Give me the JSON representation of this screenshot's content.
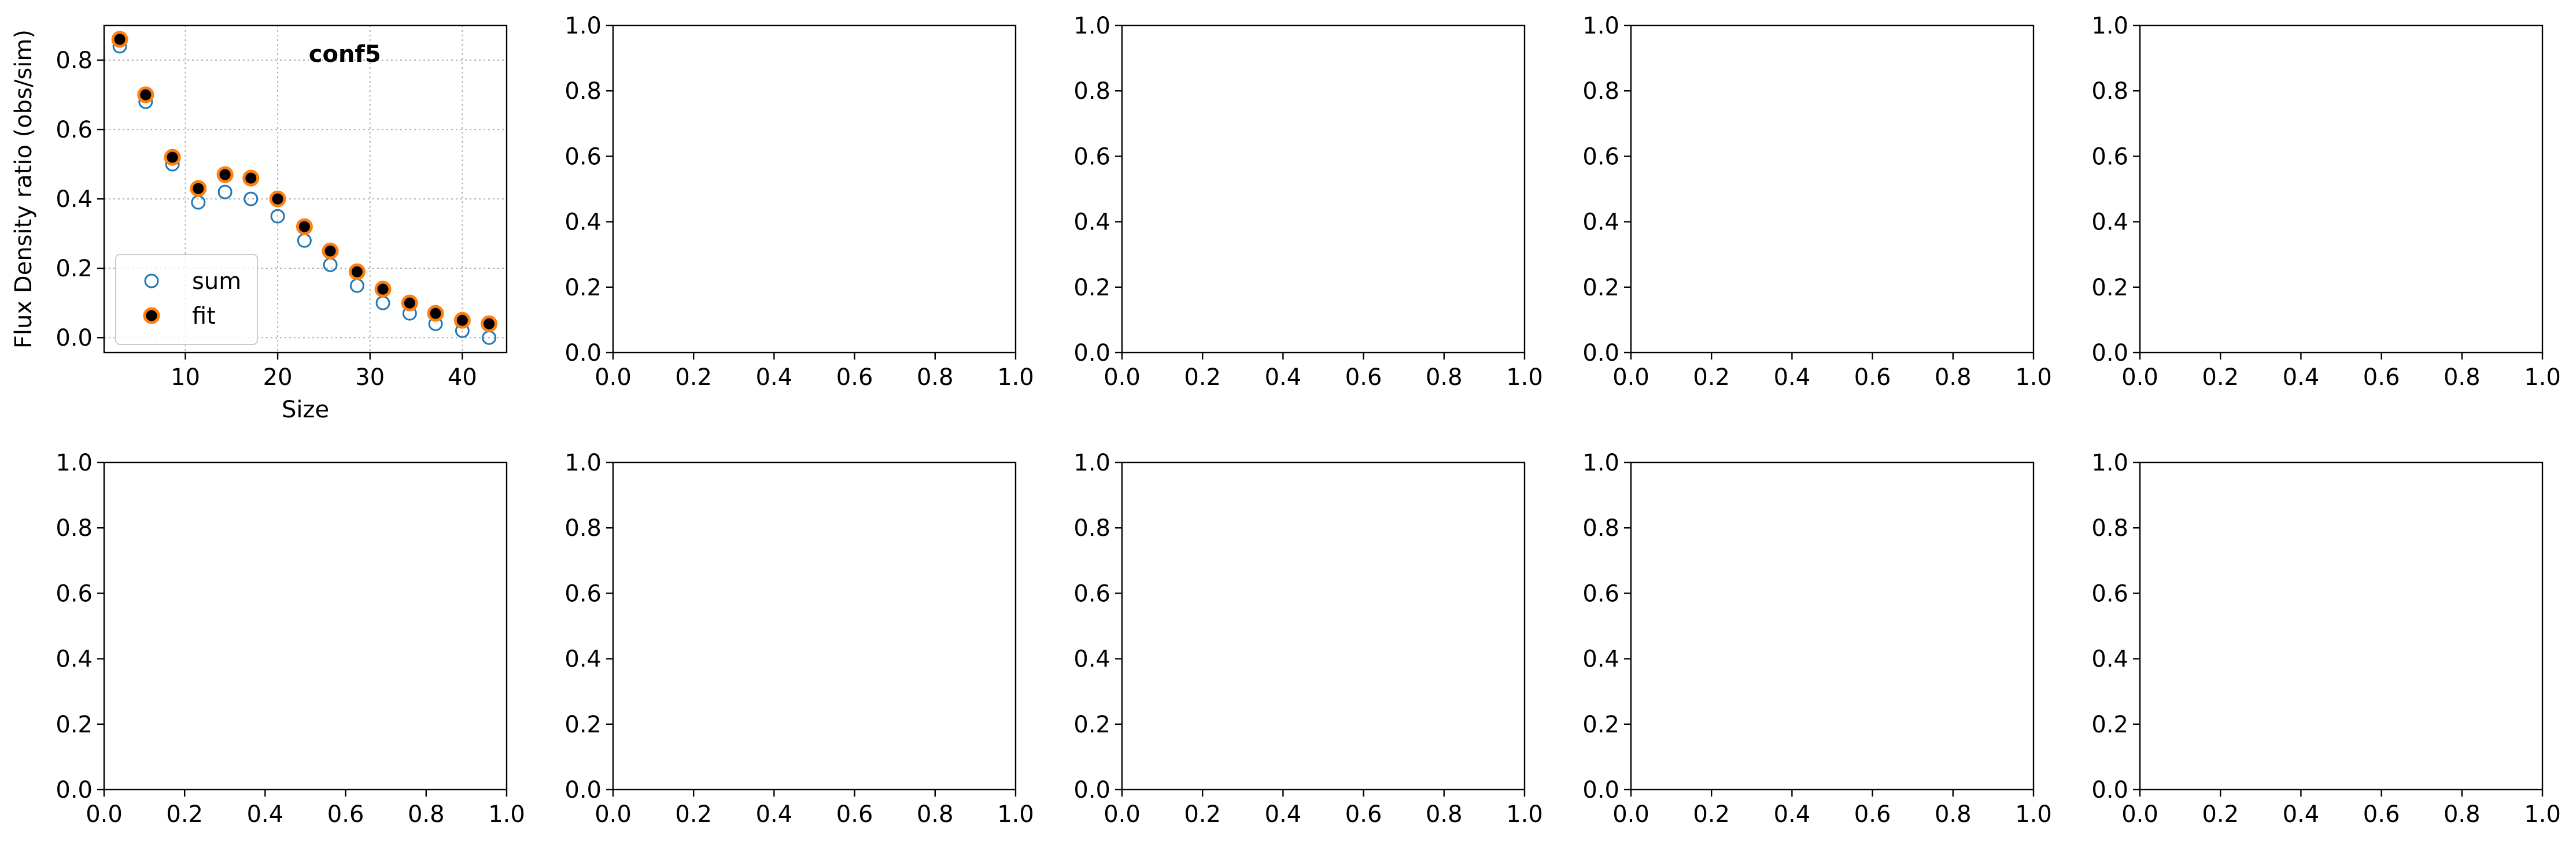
{
  "chart_data": [
    {
      "type": "scatter",
      "title": "conf5",
      "xlabel": "Size",
      "ylabel": "Flux Density ratio (obs/sim)",
      "xlim": [
        1.2,
        44.8
      ],
      "ylim": [
        -0.043,
        0.9
      ],
      "xticks": [
        10,
        20,
        30,
        40
      ],
      "yticks": [
        0.0,
        0.2,
        0.4,
        0.6,
        0.8
      ],
      "grid": true,
      "legend_position": "lower-left",
      "series": [
        {
          "name": "sum",
          "marker": "open-circle",
          "color": "#1f77b4",
          "x": [
            2.9,
            5.7,
            8.6,
            11.4,
            14.3,
            17.1,
            20.0,
            22.9,
            25.7,
            28.6,
            31.4,
            34.3,
            37.1,
            40.0,
            42.9
          ],
          "y": [
            0.84,
            0.68,
            0.5,
            0.39,
            0.42,
            0.4,
            0.35,
            0.28,
            0.21,
            0.15,
            0.1,
            0.07,
            0.04,
            0.02,
            0.0
          ]
        },
        {
          "name": "fit",
          "marker": "filled-circle",
          "color": "#000000",
          "edgecolor": "#ff7f0e",
          "x": [
            2.9,
            5.7,
            8.6,
            11.4,
            14.3,
            17.1,
            20.0,
            22.9,
            25.7,
            28.6,
            31.4,
            34.3,
            37.1,
            40.0,
            42.9
          ],
          "y": [
            0.86,
            0.7,
            0.52,
            0.43,
            0.47,
            0.46,
            0.4,
            0.32,
            0.25,
            0.19,
            0.14,
            0.1,
            0.07,
            0.05,
            0.04
          ]
        }
      ]
    },
    {
      "type": "empty",
      "xlim": [
        0,
        1
      ],
      "ylim": [
        0,
        1
      ],
      "xticks": [
        0.0,
        0.2,
        0.4,
        0.6,
        0.8,
        1.0
      ],
      "yticks": [
        0.0,
        0.2,
        0.4,
        0.6,
        0.8,
        1.0
      ]
    },
    {
      "type": "empty",
      "xlim": [
        0,
        1
      ],
      "ylim": [
        0,
        1
      ],
      "xticks": [
        0.0,
        0.2,
        0.4,
        0.6,
        0.8,
        1.0
      ],
      "yticks": [
        0.0,
        0.2,
        0.4,
        0.6,
        0.8,
        1.0
      ]
    },
    {
      "type": "empty",
      "xlim": [
        0,
        1
      ],
      "ylim": [
        0,
        1
      ],
      "xticks": [
        0.0,
        0.2,
        0.4,
        0.6,
        0.8,
        1.0
      ],
      "yticks": [
        0.0,
        0.2,
        0.4,
        0.6,
        0.8,
        1.0
      ]
    },
    {
      "type": "empty",
      "xlim": [
        0,
        1
      ],
      "ylim": [
        0,
        1
      ],
      "xticks": [
        0.0,
        0.2,
        0.4,
        0.6,
        0.8,
        1.0
      ],
      "yticks": [
        0.0,
        0.2,
        0.4,
        0.6,
        0.8,
        1.0
      ]
    },
    {
      "type": "empty",
      "xlim": [
        0,
        1
      ],
      "ylim": [
        0,
        1
      ],
      "xticks": [
        0.0,
        0.2,
        0.4,
        0.6,
        0.8,
        1.0
      ],
      "yticks": [
        0.0,
        0.2,
        0.4,
        0.6,
        0.8,
        1.0
      ]
    },
    {
      "type": "empty",
      "xlim": [
        0,
        1
      ],
      "ylim": [
        0,
        1
      ],
      "xticks": [
        0.0,
        0.2,
        0.4,
        0.6,
        0.8,
        1.0
      ],
      "yticks": [
        0.0,
        0.2,
        0.4,
        0.6,
        0.8,
        1.0
      ]
    },
    {
      "type": "empty",
      "xlim": [
        0,
        1
      ],
      "ylim": [
        0,
        1
      ],
      "xticks": [
        0.0,
        0.2,
        0.4,
        0.6,
        0.8,
        1.0
      ],
      "yticks": [
        0.0,
        0.2,
        0.4,
        0.6,
        0.8,
        1.0
      ]
    },
    {
      "type": "empty",
      "xlim": [
        0,
        1
      ],
      "ylim": [
        0,
        1
      ],
      "xticks": [
        0.0,
        0.2,
        0.4,
        0.6,
        0.8,
        1.0
      ],
      "yticks": [
        0.0,
        0.2,
        0.4,
        0.6,
        0.8,
        1.0
      ]
    },
    {
      "type": "empty",
      "xlim": [
        0,
        1
      ],
      "ylim": [
        0,
        1
      ],
      "xticks": [
        0.0,
        0.2,
        0.4,
        0.6,
        0.8,
        1.0
      ],
      "yticks": [
        0.0,
        0.2,
        0.4,
        0.6,
        0.8,
        1.0
      ]
    }
  ]
}
